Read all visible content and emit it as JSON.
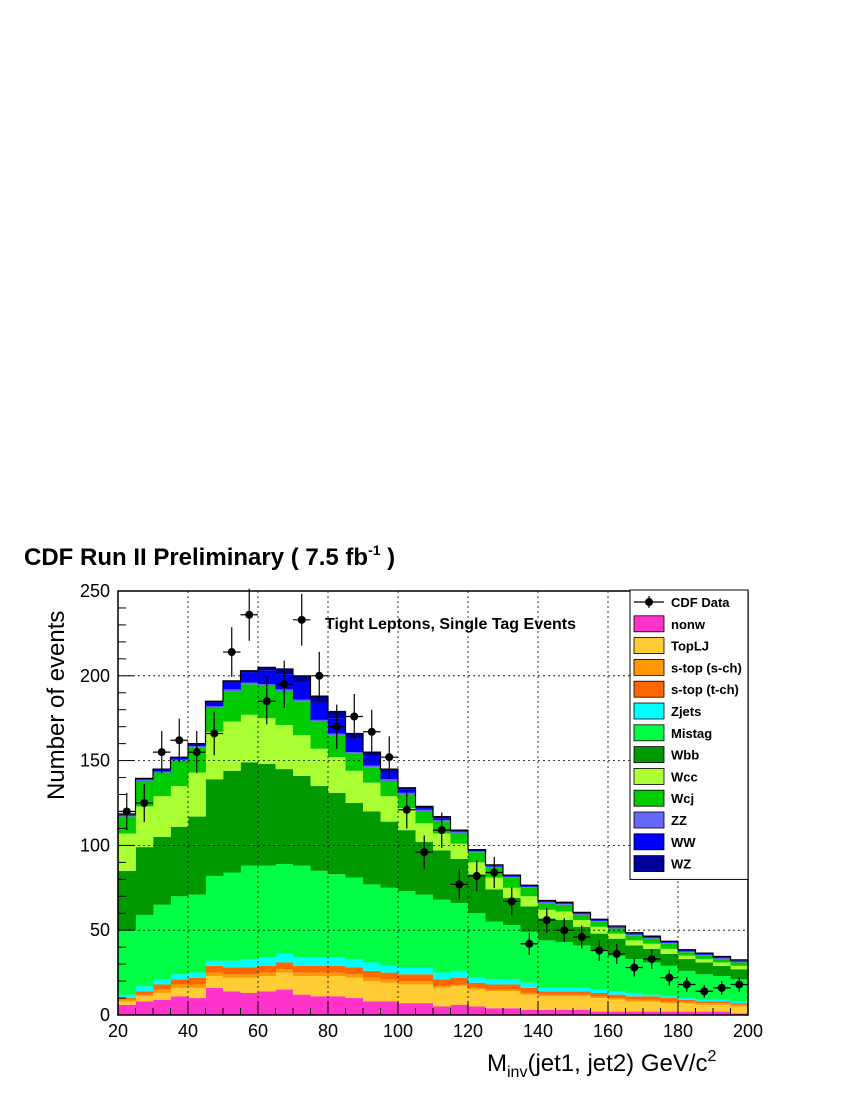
{
  "chart_data": {
    "type": "bar",
    "stacked": true,
    "header": "CDF Run II Preliminary ( 7.5 fb",
    "header_sup": "-1",
    "header_end": " )",
    "annotation": "Tight Leptons, Single Tag Events",
    "xlabel_main": "M",
    "xlabel_sub": "inv",
    "xlabel_rest": "(jet1, jet2)  GeV/c",
    "xlabel_sup": "2",
    "ylabel": "Number of events",
    "xlim": [
      20,
      200
    ],
    "ylim": [
      0,
      250
    ],
    "xticks": [
      20,
      40,
      60,
      80,
      100,
      120,
      140,
      160,
      180,
      200
    ],
    "yticks": [
      0,
      50,
      100,
      150,
      200,
      250
    ],
    "grid": true,
    "legend_position": "top-right",
    "bin_edges": [
      20,
      25,
      30,
      35,
      40,
      45,
      50,
      55,
      60,
      65,
      70,
      75,
      80,
      85,
      90,
      95,
      100,
      105,
      110,
      115,
      120,
      125,
      130,
      135,
      140,
      145,
      150,
      155,
      160,
      165,
      170,
      175,
      180,
      185,
      190,
      195,
      200
    ],
    "series": [
      {
        "name": "nonw",
        "color": "#ff33cc",
        "values": [
          6,
          8,
          9,
          11,
          10,
          16,
          14,
          13,
          14,
          15,
          12,
          11,
          11,
          10,
          8,
          8,
          7,
          7,
          5,
          6,
          5,
          4,
          4,
          3,
          3,
          3,
          3,
          2,
          2,
          2,
          2,
          2,
          2,
          2,
          2,
          1
        ]
      },
      {
        "name": "TopLJ",
        "color": "#ffcc33",
        "values": [
          2,
          3,
          4,
          5,
          6,
          7,
          8,
          9,
          9,
          10,
          11,
          12,
          12,
          12,
          12,
          11,
          11,
          11,
          11,
          11,
          10,
          10,
          10,
          9,
          8,
          8,
          8,
          8,
          7,
          6,
          6,
          5,
          5,
          4,
          4,
          4
        ]
      },
      {
        "name": "s-top (s-ch)",
        "color": "#ff9900",
        "values": [
          1,
          1,
          2,
          2,
          2,
          2,
          2,
          2,
          2,
          2,
          2,
          2,
          2,
          2,
          2,
          2,
          2,
          2,
          1,
          1,
          1,
          1,
          1,
          1,
          1,
          1,
          1,
          1,
          1,
          1,
          1,
          1,
          1,
          1,
          1,
          1
        ]
      },
      {
        "name": "s-top (t-ch)",
        "color": "#ff6600",
        "values": [
          1,
          2,
          3,
          3,
          4,
          4,
          4,
          4,
          4,
          4,
          4,
          4,
          4,
          4,
          4,
          4,
          4,
          4,
          4,
          4,
          3,
          3,
          3,
          3,
          2,
          2,
          2,
          2,
          2,
          2,
          2,
          2,
          1,
          1,
          1,
          1
        ]
      },
      {
        "name": "Zjets",
        "color": "#00ffff",
        "values": [
          2,
          3,
          3,
          3,
          3,
          3,
          4,
          5,
          5,
          5,
          5,
          5,
          5,
          5,
          5,
          4,
          4,
          4,
          4,
          4,
          3,
          3,
          3,
          3,
          2,
          2,
          2,
          2,
          2,
          2,
          1,
          1,
          1,
          1,
          1,
          1
        ]
      },
      {
        "name": "Mistag",
        "color": "#00ff44",
        "values": [
          38,
          42,
          44,
          46,
          46,
          50,
          52,
          55,
          54,
          53,
          54,
          51,
          49,
          48,
          46,
          46,
          45,
          43,
          43,
          40,
          38,
          34,
          32,
          30,
          28,
          27,
          25,
          23,
          21,
          20,
          19,
          18,
          16,
          15,
          14,
          13
        ]
      },
      {
        "name": "Wbb",
        "color": "#009900",
        "values": [
          35,
          40,
          40,
          41,
          46,
          57,
          60,
          61,
          60,
          56,
          53,
          50,
          48,
          44,
          43,
          39,
          36,
          31,
          29,
          26,
          23,
          19,
          16,
          15,
          13,
          13,
          11,
          10,
          10,
          8,
          8,
          7,
          7,
          7,
          6,
          6
        ]
      },
      {
        "name": "Wcc",
        "color": "#aaff33",
        "values": [
          22,
          24,
          24,
          24,
          26,
          28,
          29,
          28,
          27,
          26,
          24,
          22,
          21,
          19,
          17,
          15,
          13,
          11,
          10,
          9,
          7,
          7,
          6,
          6,
          5,
          5,
          4,
          4,
          3,
          3,
          3,
          3,
          2,
          2,
          2,
          2
        ]
      },
      {
        "name": "Wcj",
        "color": "#00cc00",
        "values": [
          10,
          15,
          14,
          15,
          15,
          14,
          18,
          18,
          19,
          20,
          20,
          16,
          13,
          10,
          9,
          9,
          8,
          7,
          7,
          6,
          6,
          6,
          6,
          5,
          4,
          4,
          3,
          3,
          3,
          3,
          3,
          3,
          2,
          2,
          2,
          2
        ]
      },
      {
        "name": "ZZ",
        "color": "#6666ff",
        "values": [
          0.5,
          0.5,
          0.5,
          0.5,
          0.5,
          1,
          1,
          1,
          1,
          1,
          1,
          1,
          1,
          1,
          1,
          1,
          1,
          1,
          1,
          1,
          0.5,
          0.5,
          0.5,
          0.5,
          0.5,
          0.5,
          0.5,
          0.5,
          0.5,
          0.5,
          0.5,
          0.5,
          0.5,
          0.5,
          0.5,
          0.5
        ]
      },
      {
        "name": "WW",
        "color": "#0000ff",
        "values": [
          0.5,
          0.5,
          1,
          1,
          1,
          2,
          4,
          6,
          8,
          9,
          10,
          10,
          9,
          8,
          6,
          4,
          2,
          1,
          1,
          0.5,
          0.5,
          0.5,
          0.5,
          0.5,
          0.5,
          0.5,
          0.5,
          0.5,
          0.5,
          0.5,
          0.5,
          0.5,
          0.5,
          0.5,
          0.5,
          0.5
        ]
      },
      {
        "name": "WZ",
        "color": "#000099",
        "values": [
          0.5,
          0.5,
          0.5,
          0.5,
          0.5,
          1,
          1,
          1,
          2,
          3,
          4,
          4,
          4,
          3,
          2,
          2,
          1,
          1,
          1,
          0.5,
          0.5,
          0.5,
          0.5,
          0.5,
          0.5,
          0.5,
          0.5,
          0.5,
          0.5,
          0.5,
          0.5,
          0.5,
          0.5,
          0.5,
          0.5,
          0.5
        ]
      }
    ],
    "data": {
      "name": "CDF Data",
      "x": [
        22.5,
        27.5,
        32.5,
        37.5,
        42.5,
        47.5,
        52.5,
        57.5,
        62.5,
        67.5,
        72.5,
        77.5,
        82.5,
        87.5,
        92.5,
        97.5,
        102.5,
        107.5,
        112.5,
        117.5,
        122.5,
        127.5,
        132.5,
        137.5,
        142.5,
        147.5,
        152.5,
        157.5,
        162.5,
        167.5,
        172.5,
        177.5,
        182.5,
        187.5,
        192.5,
        197.5
      ],
      "y": [
        120,
        125,
        155,
        162,
        155,
        166,
        214,
        236,
        185,
        195,
        233,
        200,
        170,
        176,
        167,
        152,
        121,
        96,
        109,
        77,
        82,
        84,
        67,
        42,
        56,
        50,
        46,
        38,
        36,
        28,
        33,
        22,
        18,
        14,
        16,
        18
      ]
    }
  }
}
